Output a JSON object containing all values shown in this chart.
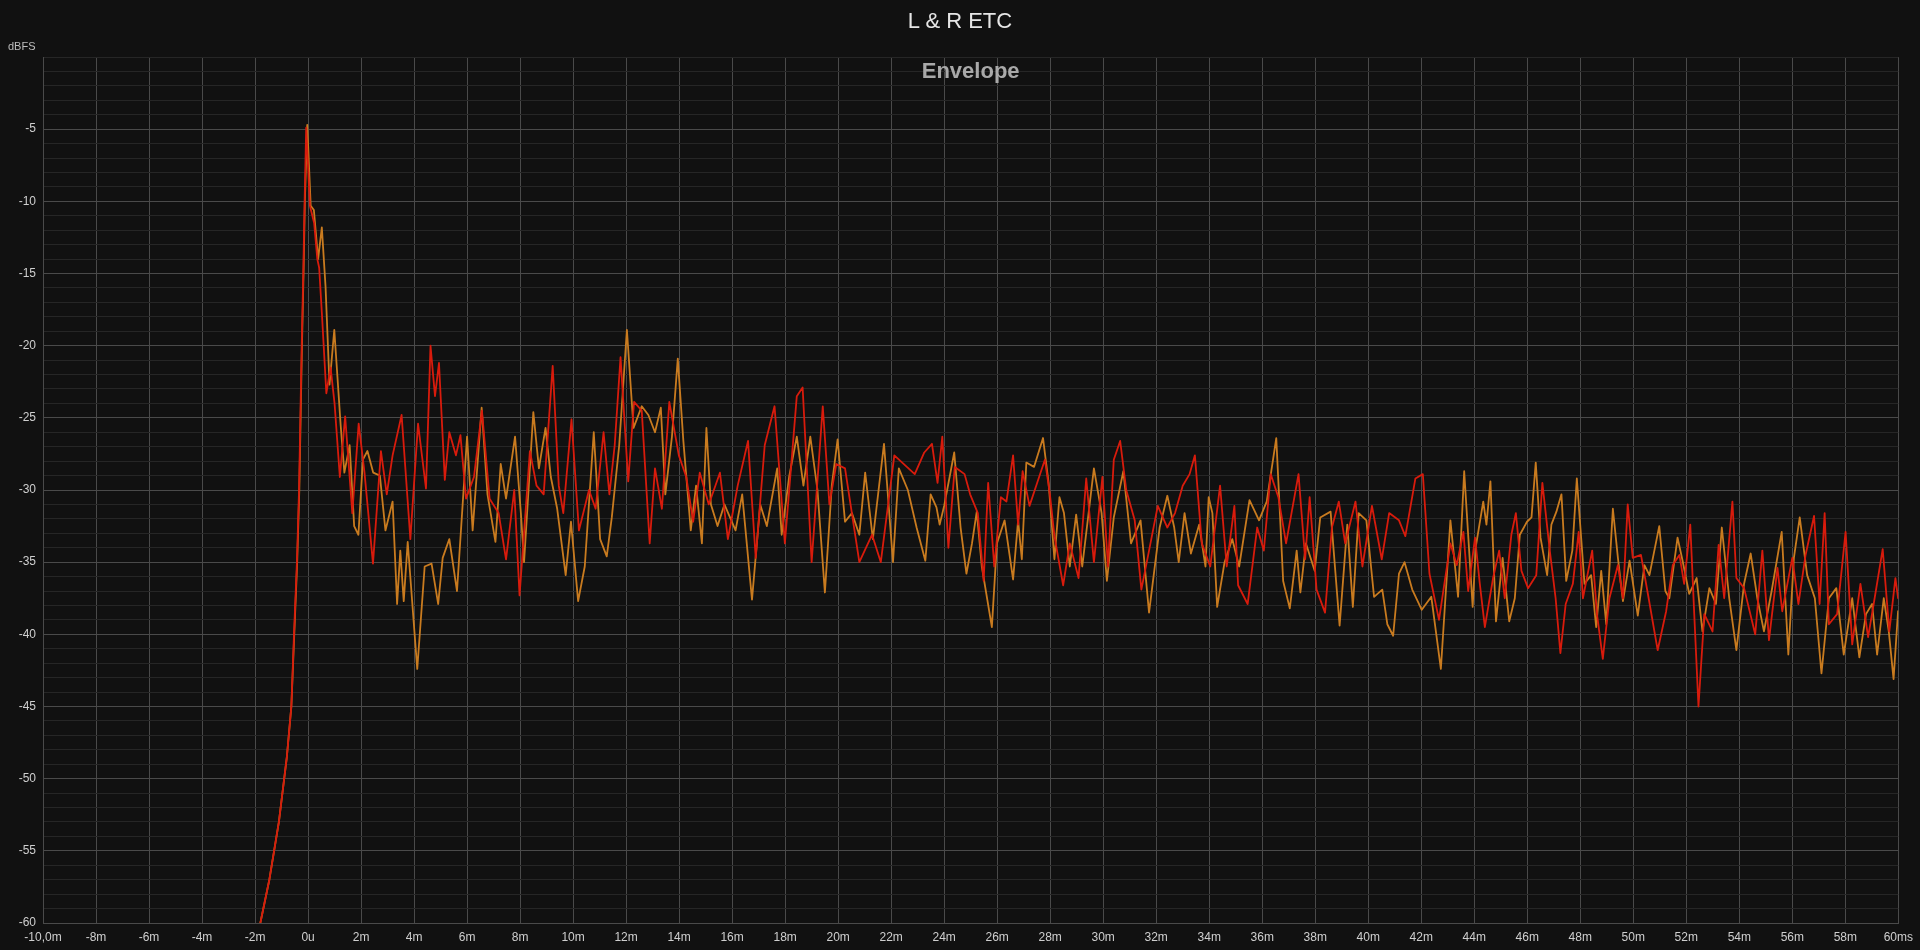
{
  "chart_data": {
    "type": "line",
    "title": "L & R ETC",
    "subtitle": "Envelope",
    "ylabel": "dBFS",
    "xlim": [
      -10,
      60
    ],
    "ylim": [
      -60,
      0
    ],
    "xticks": [
      {
        "value": -10,
        "label": "-10,0m"
      },
      {
        "value": -8,
        "label": "-8m"
      },
      {
        "value": -6,
        "label": "-6m"
      },
      {
        "value": -4,
        "label": "-4m"
      },
      {
        "value": -2,
        "label": "-2m"
      },
      {
        "value": 0,
        "label": "0u"
      },
      {
        "value": 2,
        "label": "2m"
      },
      {
        "value": 4,
        "label": "4m"
      },
      {
        "value": 6,
        "label": "6m"
      },
      {
        "value": 8,
        "label": "8m"
      },
      {
        "value": 10,
        "label": "10m"
      },
      {
        "value": 12,
        "label": "12m"
      },
      {
        "value": 14,
        "label": "14m"
      },
      {
        "value": 16,
        "label": "16m"
      },
      {
        "value": 18,
        "label": "18m"
      },
      {
        "value": 20,
        "label": "20m"
      },
      {
        "value": 22,
        "label": "22m"
      },
      {
        "value": 24,
        "label": "24m"
      },
      {
        "value": 26,
        "label": "26m"
      },
      {
        "value": 28,
        "label": "28m"
      },
      {
        "value": 30,
        "label": "30m"
      },
      {
        "value": 32,
        "label": "32m"
      },
      {
        "value": 34,
        "label": "34m"
      },
      {
        "value": 36,
        "label": "36m"
      },
      {
        "value": 38,
        "label": "38m"
      },
      {
        "value": 40,
        "label": "40m"
      },
      {
        "value": 42,
        "label": "42m"
      },
      {
        "value": 44,
        "label": "44m"
      },
      {
        "value": 46,
        "label": "46m"
      },
      {
        "value": 48,
        "label": "48m"
      },
      {
        "value": 50,
        "label": "50m"
      },
      {
        "value": 52,
        "label": "52m"
      },
      {
        "value": 54,
        "label": "54m"
      },
      {
        "value": 56,
        "label": "56m"
      },
      {
        "value": 58,
        "label": "58m"
      },
      {
        "value": 60,
        "label": "60ms"
      }
    ],
    "yticks": [
      -60,
      {
        "value": -59,
        "label": null
      },
      {
        "value": -58,
        "label": null
      },
      {
        "value": -57,
        "label": null
      },
      {
        "value": -56,
        "label": null
      },
      -55,
      {
        "value": -54,
        "label": null
      },
      {
        "value": -53,
        "label": null
      },
      {
        "value": -52,
        "label": null
      },
      {
        "value": -51,
        "label": null
      },
      -50,
      {
        "value": -49,
        "label": null
      },
      {
        "value": -48,
        "label": null
      },
      {
        "value": -47,
        "label": null
      },
      {
        "value": -46,
        "label": null
      },
      -45,
      {
        "value": -44,
        "label": null
      },
      {
        "value": -43,
        "label": null
      },
      {
        "value": -42,
        "label": null
      },
      {
        "value": -41,
        "label": null
      },
      -40,
      {
        "value": -39,
        "label": null
      },
      {
        "value": -38,
        "label": null
      },
      {
        "value": -37,
        "label": null
      },
      {
        "value": -36,
        "label": null
      },
      -35,
      {
        "value": -34,
        "label": null
      },
      {
        "value": -33,
        "label": null
      },
      {
        "value": -32,
        "label": null
      },
      {
        "value": -31,
        "label": null
      },
      -30,
      {
        "value": -29,
        "label": null
      },
      {
        "value": -28,
        "label": null
      },
      {
        "value": -27,
        "label": null
      },
      {
        "value": -26,
        "label": null
      },
      -25,
      {
        "value": -24,
        "label": null
      },
      {
        "value": -23,
        "label": null
      },
      {
        "value": -22,
        "label": null
      },
      {
        "value": -21,
        "label": null
      },
      -20,
      {
        "value": -19,
        "label": null
      },
      {
        "value": -18,
        "label": null
      },
      {
        "value": -17,
        "label": null
      },
      {
        "value": -16,
        "label": null
      },
      -15,
      {
        "value": -14,
        "label": null
      },
      {
        "value": -13,
        "label": null
      },
      {
        "value": -12,
        "label": null
      },
      {
        "value": -11,
        "label": null
      },
      -10,
      {
        "value": -9,
        "label": null
      },
      {
        "value": -8,
        "label": null
      },
      {
        "value": -7,
        "label": null
      },
      {
        "value": -6,
        "label": null
      },
      -5,
      {
        "value": -4,
        "label": null
      },
      {
        "value": -3,
        "label": null
      },
      {
        "value": -2,
        "label": null
      },
      {
        "value": -1,
        "label": null
      },
      {
        "value": 0,
        "label": null
      }
    ],
    "grid": true,
    "legend": false,
    "series": [
      {
        "color": "#d81b0c",
        "x": [
          -1.8,
          -1.46,
          -1.1,
          -0.8,
          -0.63,
          -0.53,
          -0.42,
          -0.34,
          -0.29,
          -0.24,
          -0.18,
          -0.13,
          -0.07,
          0.07,
          0.23,
          0.35,
          0.42,
          0.52,
          0.69,
          0.85,
          1.0,
          1.2,
          1.4,
          1.67,
          1.91,
          2.13,
          2.45,
          2.75,
          2.97,
          3.19,
          3.53,
          3.86,
          4.15,
          4.45,
          4.62,
          4.79,
          4.94,
          5.16,
          5.33,
          5.58,
          5.75,
          5.96,
          6.26,
          6.56,
          6.85,
          7.19,
          7.47,
          7.78,
          7.98,
          8.37,
          8.62,
          8.89,
          9.23,
          9.46,
          9.63,
          9.94,
          10.22,
          10.6,
          10.85,
          11.15,
          11.37,
          11.57,
          11.79,
          12.08,
          12.3,
          12.59,
          12.89,
          13.09,
          13.35,
          13.63,
          13.99,
          14.27,
          14.53,
          14.78,
          15.12,
          15.54,
          15.84,
          16.21,
          16.6,
          16.89,
          17.23,
          17.6,
          17.99,
          18.44,
          18.66,
          19.0,
          19.42,
          19.67,
          19.93,
          20.26,
          20.8,
          21.28,
          21.61,
          22.12,
          22.89,
          23.25,
          23.54,
          23.75,
          23.93,
          24.16,
          24.4,
          24.77,
          24.98,
          25.27,
          25.49,
          25.66,
          25.89,
          26.14,
          26.35,
          26.6,
          26.79,
          26.96,
          27.22,
          27.51,
          27.8,
          27.99,
          28.16,
          28.49,
          28.74,
          29.07,
          29.36,
          29.65,
          29.97,
          30.18,
          30.4,
          30.64,
          30.87,
          31.19,
          31.44,
          31.73,
          32.06,
          32.42,
          32.71,
          33.0,
          33.26,
          33.46,
          33.72,
          34.04,
          34.41,
          34.66,
          34.95,
          35.09,
          35.45,
          35.81,
          36.06,
          36.32,
          36.61,
          36.9,
          37.37,
          37.62,
          37.79,
          38.05,
          38.37,
          38.63,
          38.89,
          39.13,
          39.52,
          39.78,
          40.14,
          40.51,
          40.79,
          41.16,
          41.4,
          41.78,
          42.06,
          42.31,
          42.67,
          43.1,
          43.34,
          43.59,
          43.77,
          44.03,
          44.21,
          44.4,
          44.71,
          44.94,
          45.15,
          45.4,
          45.57,
          45.78,
          46.03,
          46.34,
          46.57,
          46.85,
          47.07,
          47.25,
          47.45,
          47.72,
          47.94,
          48.1,
          48.45,
          48.63,
          48.85,
          49.1,
          49.42,
          49.61,
          49.79,
          49.98,
          50.29,
          50.58,
          50.92,
          51.24,
          51.49,
          51.74,
          51.92,
          52.15,
          52.3,
          52.46,
          52.68,
          52.99,
          53.22,
          53.43,
          53.74,
          53.89,
          54.18,
          54.6,
          54.87,
          55.12,
          55.44,
          55.62,
          56.0,
          56.23,
          56.5,
          56.82,
          57.03,
          57.22,
          57.38,
          57.69,
          58.01,
          58.26,
          58.57,
          58.86,
          59.07,
          59.41,
          59.66,
          59.89,
          59.99
        ],
        "values": [
          -60,
          -57,
          -53,
          -48.5,
          -45,
          -40,
          -35,
          -30,
          -25,
          -20,
          -15,
          -10,
          -4.9,
          -10.3,
          -11.5,
          -14.0,
          -14.6,
          -17.7,
          -23.3,
          -21.5,
          -24.0,
          -29.1,
          -24.9,
          -31.6,
          -25.4,
          -28.8,
          -35.1,
          -27.3,
          -30.3,
          -27.6,
          -24.8,
          -33.4,
          -25.4,
          -29.9,
          -20.0,
          -23.5,
          -21.2,
          -29.3,
          -26.0,
          -27.6,
          -26.2,
          -30.6,
          -29.1,
          -24.5,
          -30.6,
          -31.6,
          -34.8,
          -30.0,
          -37.3,
          -27.3,
          -29.7,
          -30.3,
          -21.4,
          -29.7,
          -31.6,
          -25.1,
          -32.8,
          -30.0,
          -31.3,
          -26.0,
          -30.3,
          -26.9,
          -20.8,
          -29.4,
          -23.9,
          -24.5,
          -33.7,
          -28.5,
          -31.3,
          -23.9,
          -27.6,
          -29.1,
          -32.2,
          -28.8,
          -31.0,
          -28.8,
          -33.4,
          -29.7,
          -26.6,
          -34.7,
          -26.9,
          -24.2,
          -33.7,
          -23.5,
          -22.9,
          -35.0,
          -24.2,
          -31.0,
          -28.2,
          -28.5,
          -35.0,
          -33.1,
          -35.0,
          -27.6,
          -28.9,
          -27.4,
          -26.8,
          -29.5,
          -26.3,
          -34.0,
          -28.4,
          -28.9,
          -30.3,
          -31.6,
          -36.3,
          -29.5,
          -35.3,
          -30.5,
          -30.8,
          -27.6,
          -32.4,
          -28.7,
          -31.1,
          -29.5,
          -27.9,
          -30.3,
          -33.2,
          -36.6,
          -33.7,
          -36.1,
          -29.2,
          -35.0,
          -29.1,
          -35.3,
          -27.9,
          -26.6,
          -30.0,
          -32.1,
          -36.9,
          -34.2,
          -31.1,
          -32.6,
          -31.6,
          -29.7,
          -28.9,
          -27.6,
          -33.7,
          -35.3,
          -29.7,
          -35.3,
          -31.1,
          -36.6,
          -37.9,
          -32.6,
          -34.2,
          -28.9,
          -30.5,
          -33.7,
          -28.9,
          -34.8,
          -30.5,
          -36.9,
          -38.5,
          -32.6,
          -30.8,
          -33.7,
          -30.8,
          -35.3,
          -31.1,
          -34.8,
          -31.6,
          -32.1,
          -33.2,
          -29.2,
          -28.9,
          -35.8,
          -39.0,
          -33.7,
          -35.2,
          -32.9,
          -37.0,
          -33.3,
          -36.5,
          -39.5,
          -36.1,
          -34.2,
          -37.5,
          -33.1,
          -31.6,
          -35.6,
          -36.8,
          -35.9,
          -29.5,
          -34.2,
          -37.5,
          -41.3,
          -37.9,
          -36.5,
          -32.9,
          -37.5,
          -34.2,
          -38.6,
          -41.7,
          -37.5,
          -35.2,
          -37.5,
          -31.0,
          -34.7,
          -34.5,
          -37.5,
          -41.1,
          -38.4,
          -35.2,
          -34.5,
          -36.5,
          -32.4,
          -38.6,
          -45.0,
          -38.6,
          -39.8,
          -33.8,
          -37.5,
          -30.8,
          -36.1,
          -36.8,
          -40.0,
          -34.2,
          -40.4,
          -35.4,
          -38.4,
          -34.7,
          -37.9,
          -34.5,
          -31.8,
          -37.9,
          -31.6,
          -39.3,
          -38.6,
          -32.9,
          -40.7,
          -36.5,
          -40.2,
          -37.9,
          -34.1,
          -39.8,
          -36.1,
          -37.5
        ]
      },
      {
        "color": "#c97b1f",
        "x": [
          -1.8,
          -1.46,
          -1.1,
          -0.8,
          -0.63,
          -0.52,
          -0.41,
          -0.33,
          -0.28,
          -0.23,
          -0.17,
          -0.12,
          -0.03,
          0.1,
          0.22,
          0.38,
          0.52,
          0.66,
          0.81,
          0.99,
          1.23,
          1.37,
          1.57,
          1.74,
          1.9,
          2.07,
          2.24,
          2.46,
          2.71,
          2.92,
          3.19,
          3.36,
          3.48,
          3.61,
          3.76,
          4.12,
          4.4,
          4.66,
          4.91,
          5.08,
          5.33,
          5.62,
          6.0,
          6.21,
          6.55,
          6.77,
          7.07,
          7.27,
          7.47,
          7.81,
          8.03,
          8.15,
          8.5,
          8.71,
          8.96,
          9.16,
          9.4,
          9.72,
          9.92,
          10.19,
          10.44,
          10.78,
          11.02,
          11.27,
          11.46,
          11.74,
          12.03,
          12.28,
          12.59,
          12.84,
          13.09,
          13.31,
          13.48,
          13.73,
          13.95,
          14.16,
          14.44,
          14.64,
          14.86,
          15.03,
          15.2,
          15.45,
          15.71,
          16.13,
          16.38,
          16.75,
          17.06,
          17.31,
          17.7,
          17.87,
          18.15,
          18.44,
          18.69,
          18.95,
          19.22,
          19.5,
          19.76,
          19.98,
          20.26,
          20.52,
          20.8,
          21.02,
          21.31,
          21.73,
          22.07,
          22.29,
          22.63,
          22.96,
          23.29,
          23.49,
          23.71,
          23.83,
          24.0,
          24.38,
          24.62,
          24.84,
          25.05,
          25.23,
          25.42,
          25.8,
          25.99,
          26.28,
          26.6,
          26.79,
          26.93,
          27.1,
          27.39,
          27.73,
          27.94,
          28.16,
          28.35,
          28.52,
          28.74,
          28.98,
          29.21,
          29.65,
          29.94,
          30.14,
          30.4,
          30.76,
          31.05,
          31.41,
          31.73,
          32.13,
          32.42,
          32.68,
          32.85,
          33.07,
          33.31,
          33.62,
          33.86,
          33.98,
          34.12,
          34.3,
          34.58,
          34.87,
          35.13,
          35.52,
          35.88,
          36.17,
          36.53,
          36.79,
          37.04,
          37.3,
          37.44,
          37.65,
          37.98,
          38.19,
          38.58,
          38.92,
          39.21,
          39.42,
          39.64,
          39.93,
          40.22,
          40.53,
          40.72,
          40.94,
          41.16,
          41.37,
          41.66,
          42.02,
          42.38,
          42.74,
          43.1,
          43.39,
          43.62,
          43.94,
          44.06,
          44.34,
          44.46,
          44.61,
          44.82,
          45.07,
          45.32,
          45.53,
          45.72,
          45.99,
          46.16,
          46.32,
          46.5,
          46.75,
          46.91,
          47.1,
          47.29,
          47.47,
          47.7,
          47.87,
          48.16,
          48.41,
          48.6,
          48.79,
          48.98,
          49.23,
          49.42,
          49.61,
          49.86,
          50.17,
          50.42,
          50.61,
          50.98,
          51.21,
          51.36,
          51.67,
          51.86,
          52.11,
          52.39,
          52.61,
          52.87,
          53.12,
          53.34,
          53.62,
          53.89,
          54.18,
          54.43,
          54.68,
          54.93,
          55.22,
          55.6,
          55.85,
          56.06,
          56.28,
          56.56,
          56.85,
          57.1,
          57.38,
          57.66,
          57.94,
          58.26,
          58.53,
          58.78,
          59.01,
          59.2,
          59.45,
          59.64,
          59.82,
          59.99
        ],
        "values": [
          -60,
          -57,
          -53,
          -48.5,
          -45,
          -40,
          -35,
          -30,
          -25,
          -20,
          -15,
          -10,
          -4.7,
          -10.3,
          -10.6,
          -14.0,
          -11.8,
          -15.9,
          -22.7,
          -18.9,
          -25.5,
          -28.8,
          -26.9,
          -32.5,
          -33.1,
          -27.9,
          -27.3,
          -28.8,
          -29.0,
          -32.8,
          -30.8,
          -37.9,
          -34.2,
          -37.7,
          -33.6,
          -42.4,
          -35.3,
          -35.1,
          -37.9,
          -34.7,
          -33.4,
          -37.0,
          -26.3,
          -32.8,
          -24.3,
          -30.3,
          -33.6,
          -28.2,
          -30.6,
          -26.3,
          -31.6,
          -35.0,
          -24.6,
          -28.5,
          -25.7,
          -29.1,
          -31.3,
          -35.9,
          -32.2,
          -37.7,
          -35.3,
          -26.0,
          -33.4,
          -34.6,
          -31.9,
          -26.9,
          -18.9,
          -25.7,
          -24.2,
          -24.8,
          -26.0,
          -24.3,
          -30.3,
          -26.3,
          -20.9,
          -26.6,
          -32.8,
          -29.7,
          -33.7,
          -25.7,
          -31.0,
          -32.5,
          -31.0,
          -32.8,
          -30.3,
          -37.6,
          -31.0,
          -32.5,
          -28.5,
          -33.1,
          -29.1,
          -26.3,
          -29.7,
          -26.3,
          -30.0,
          -37.1,
          -29.7,
          -26.5,
          -32.2,
          -31.6,
          -33.1,
          -28.8,
          -33.4,
          -26.8,
          -35.0,
          -28.5,
          -30.0,
          -32.6,
          -34.9,
          -30.3,
          -31.2,
          -32.4,
          -31.1,
          -27.4,
          -32.6,
          -35.8,
          -33.7,
          -31.5,
          -35.3,
          -39.5,
          -33.7,
          -32.1,
          -36.2,
          -32.1,
          -34.8,
          -28.1,
          -28.4,
          -26.4,
          -29.5,
          -34.8,
          -30.5,
          -31.6,
          -35.3,
          -31.7,
          -35.3,
          -28.5,
          -31.6,
          -36.3,
          -31.9,
          -28.7,
          -33.7,
          -32.1,
          -38.5,
          -32.6,
          -30.4,
          -32.6,
          -35.0,
          -31.6,
          -34.4,
          -32.4,
          -35.3,
          -30.5,
          -31.6,
          -38.1,
          -35.0,
          -33.4,
          -35.3,
          -30.7,
          -32.1,
          -30.8,
          -26.4,
          -36.3,
          -38.2,
          -34.2,
          -37.1,
          -33.7,
          -35.6,
          -31.9,
          -31.5,
          -39.4,
          -32.4,
          -38.1,
          -31.6,
          -32.1,
          -37.4,
          -36.9,
          -39.3,
          -40.1,
          -35.8,
          -35.0,
          -36.9,
          -38.3,
          -37.4,
          -42.4,
          -32.1,
          -37.4,
          -28.7,
          -38.1,
          -33.9,
          -30.8,
          -32.4,
          -29.4,
          -39.1,
          -34.7,
          -39.1,
          -37.5,
          -33.1,
          -32.2,
          -31.9,
          -28.1,
          -33.3,
          -35.9,
          -32.4,
          -31.5,
          -30.3,
          -36.3,
          -34.2,
          -29.2,
          -36.5,
          -35.9,
          -39.5,
          -35.6,
          -39.3,
          -31.3,
          -34.7,
          -37.7,
          -34.9,
          -38.7,
          -35.2,
          -35.9,
          -32.5,
          -37.0,
          -37.5,
          -33.3,
          -34.9,
          -37.2,
          -36.1,
          -39.8,
          -36.8,
          -37.9,
          -32.6,
          -37.5,
          -41.1,
          -36.5,
          -34.4,
          -37.5,
          -39.8,
          -37.0,
          -32.9,
          -41.4,
          -34.7,
          -31.9,
          -35.9,
          -37.5,
          -42.7,
          -37.5,
          -36.8,
          -41.4,
          -37.5,
          -41.6,
          -38.6,
          -37.9,
          -41.4,
          -37.5,
          -39.8,
          -43.1,
          -38.4
        ]
      }
    ]
  }
}
